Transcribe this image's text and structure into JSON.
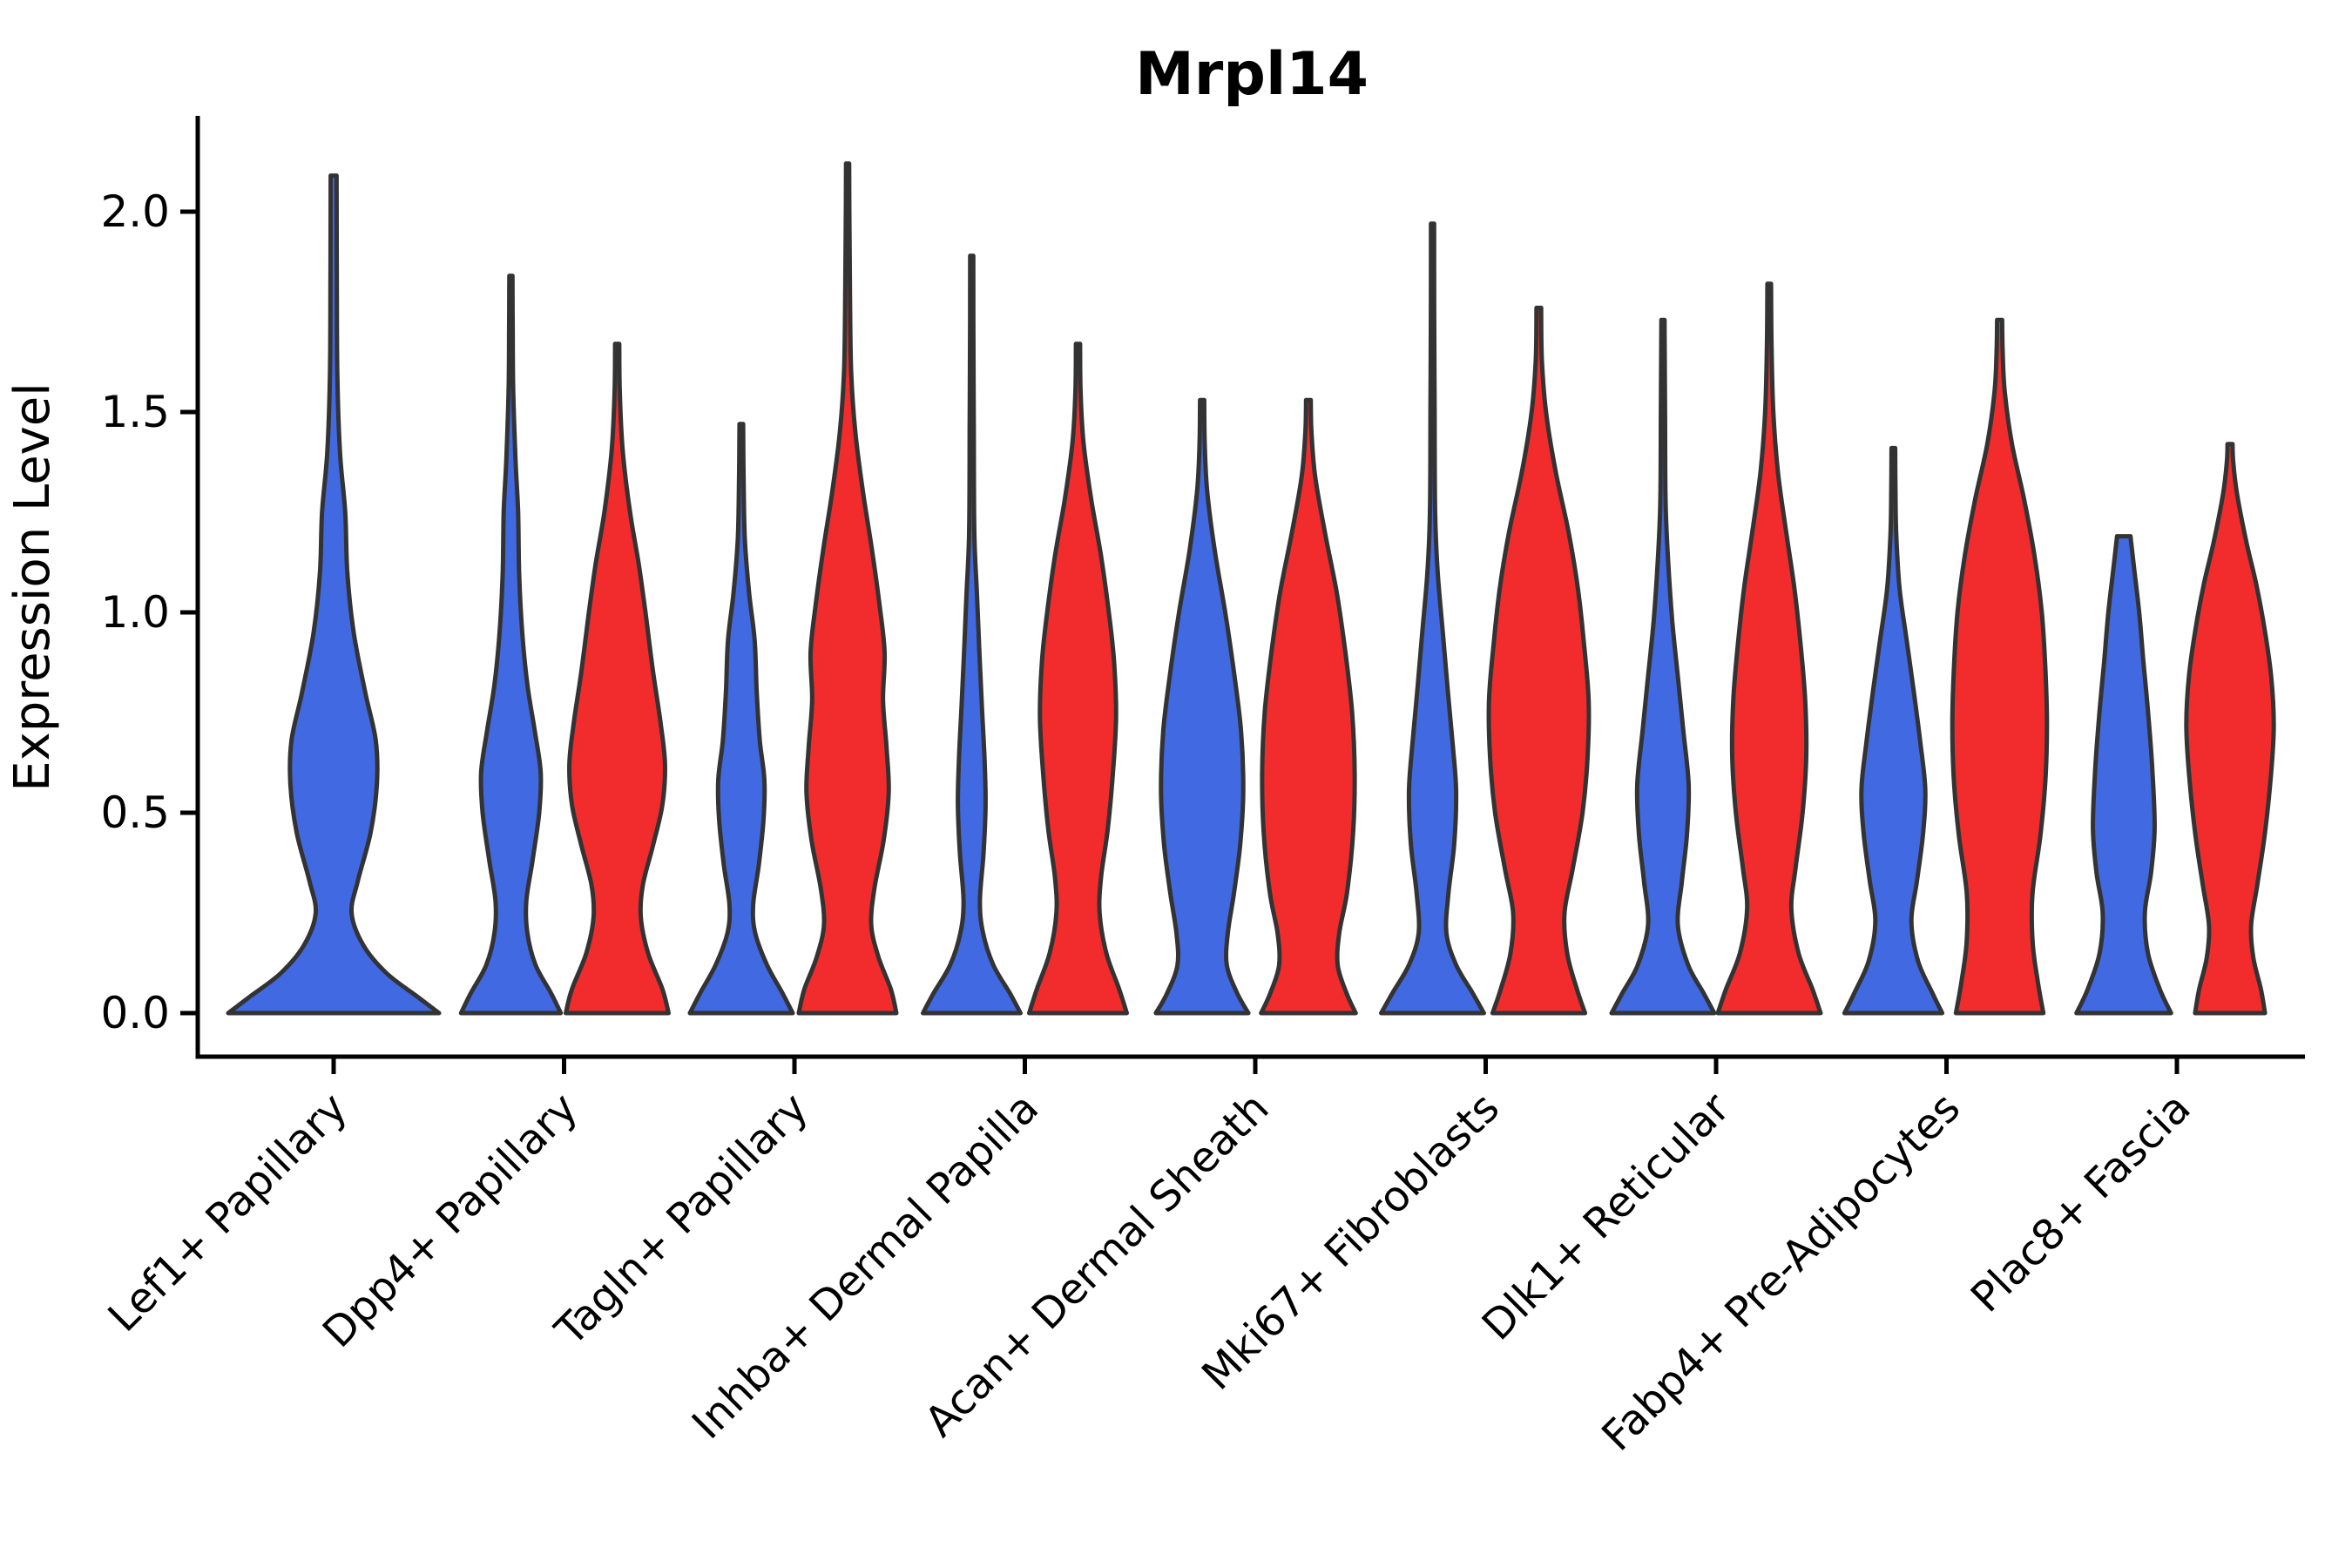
{
  "title": "Mrpl14",
  "y_axis": {
    "label": "Expression Level",
    "tick_labels": [
      "0.0",
      "0.5",
      "1.0",
      "1.5",
      "2.0"
    ]
  },
  "chart_data": {
    "type": "violin",
    "title": "Mrpl14",
    "xlabel": "",
    "ylabel": "Expression Level",
    "ylim": [
      -0.11,
      2.24
    ],
    "yticks": [
      0.0,
      0.5,
      1.0,
      1.5,
      2.0
    ],
    "grid": false,
    "legend": "none",
    "categories": [
      "Lef1+ Papillary",
      "Dpp4+ Papillary",
      "Tagln+ Papillary",
      "Inhba+ Dermal Papilla",
      "Acan+ Dermal Sheath",
      "Mki67+ Fibroblasts",
      "Dlk1+ Reticular",
      "Fabp4+ Pre-Adipocytes",
      "Plac8+ Fascia"
    ],
    "series": [
      {
        "name": "split-left",
        "color": "#4169E1"
      },
      {
        "name": "split-right",
        "color": "#F22C2C"
      }
    ],
    "outline_color": "#333333",
    "violins": [
      {
        "category": 0,
        "series": 0,
        "single": true,
        "max_expression": 2.09,
        "profile": [
          [
            0,
            1.0
          ],
          [
            0.04,
            0.8
          ],
          [
            0.1,
            0.5
          ],
          [
            0.17,
            0.28
          ],
          [
            0.25,
            0.17
          ],
          [
            0.33,
            0.23
          ],
          [
            0.45,
            0.35
          ],
          [
            0.57,
            0.41
          ],
          [
            0.68,
            0.4
          ],
          [
            0.8,
            0.3
          ],
          [
            0.95,
            0.19
          ],
          [
            1.1,
            0.13
          ],
          [
            1.25,
            0.11
          ],
          [
            1.4,
            0.06
          ],
          [
            1.6,
            0.035
          ],
          [
            1.85,
            0.03
          ],
          [
            2.09,
            0.028
          ]
        ]
      },
      {
        "category": 1,
        "series": 0,
        "single": false,
        "max_expression": 1.84,
        "profile": [
          [
            0,
            0.97
          ],
          [
            0.05,
            0.78
          ],
          [
            0.12,
            0.48
          ],
          [
            0.2,
            0.32
          ],
          [
            0.28,
            0.3
          ],
          [
            0.38,
            0.42
          ],
          [
            0.5,
            0.55
          ],
          [
            0.6,
            0.58
          ],
          [
            0.7,
            0.47
          ],
          [
            0.82,
            0.32
          ],
          [
            0.95,
            0.22
          ],
          [
            1.1,
            0.16
          ],
          [
            1.25,
            0.14
          ],
          [
            1.38,
            0.09
          ],
          [
            1.55,
            0.045
          ],
          [
            1.7,
            0.035
          ],
          [
            1.84,
            0.03
          ]
        ]
      },
      {
        "category": 1,
        "series": 1,
        "single": false,
        "max_expression": 1.67,
        "profile": [
          [
            0,
            1.0
          ],
          [
            0.06,
            0.88
          ],
          [
            0.15,
            0.6
          ],
          [
            0.24,
            0.46
          ],
          [
            0.32,
            0.5
          ],
          [
            0.42,
            0.7
          ],
          [
            0.52,
            0.88
          ],
          [
            0.62,
            0.93
          ],
          [
            0.72,
            0.85
          ],
          [
            0.85,
            0.7
          ],
          [
            1.0,
            0.55
          ],
          [
            1.12,
            0.42
          ],
          [
            1.25,
            0.25
          ],
          [
            1.4,
            0.11
          ],
          [
            1.55,
            0.05
          ],
          [
            1.67,
            0.04
          ]
        ]
      },
      {
        "category": 2,
        "series": 0,
        "single": false,
        "max_expression": 1.47,
        "profile": [
          [
            0,
            1.0
          ],
          [
            0.05,
            0.8
          ],
          [
            0.12,
            0.5
          ],
          [
            0.2,
            0.27
          ],
          [
            0.27,
            0.23
          ],
          [
            0.37,
            0.34
          ],
          [
            0.48,
            0.43
          ],
          [
            0.58,
            0.45
          ],
          [
            0.68,
            0.36
          ],
          [
            0.8,
            0.3
          ],
          [
            0.93,
            0.26
          ],
          [
            1.05,
            0.15
          ],
          [
            1.18,
            0.07
          ],
          [
            1.32,
            0.045
          ],
          [
            1.47,
            0.035
          ]
        ]
      },
      {
        "category": 2,
        "series": 1,
        "single": false,
        "max_expression": 2.12,
        "profile": [
          [
            0,
            0.95
          ],
          [
            0.06,
            0.84
          ],
          [
            0.14,
            0.6
          ],
          [
            0.22,
            0.46
          ],
          [
            0.31,
            0.52
          ],
          [
            0.43,
            0.7
          ],
          [
            0.55,
            0.8
          ],
          [
            0.66,
            0.76
          ],
          [
            0.78,
            0.69
          ],
          [
            0.9,
            0.72
          ],
          [
            1.02,
            0.62
          ],
          [
            1.16,
            0.47
          ],
          [
            1.3,
            0.3
          ],
          [
            1.45,
            0.15
          ],
          [
            1.6,
            0.07
          ],
          [
            1.8,
            0.045
          ],
          [
            1.97,
            0.035
          ],
          [
            2.12,
            0.03
          ]
        ]
      },
      {
        "category": 3,
        "series": 0,
        "single": false,
        "max_expression": 1.89,
        "profile": [
          [
            0,
            0.95
          ],
          [
            0.05,
            0.74
          ],
          [
            0.12,
            0.42
          ],
          [
            0.2,
            0.22
          ],
          [
            0.28,
            0.16
          ],
          [
            0.4,
            0.23
          ],
          [
            0.52,
            0.27
          ],
          [
            0.63,
            0.25
          ],
          [
            0.76,
            0.2
          ],
          [
            0.9,
            0.15
          ],
          [
            1.05,
            0.1
          ],
          [
            1.2,
            0.05
          ],
          [
            1.45,
            0.04
          ],
          [
            1.7,
            0.033
          ],
          [
            1.89,
            0.03
          ]
        ]
      },
      {
        "category": 3,
        "series": 1,
        "single": false,
        "max_expression": 1.67,
        "profile": [
          [
            0,
            0.95
          ],
          [
            0.06,
            0.8
          ],
          [
            0.15,
            0.55
          ],
          [
            0.25,
            0.42
          ],
          [
            0.34,
            0.45
          ],
          [
            0.46,
            0.58
          ],
          [
            0.6,
            0.68
          ],
          [
            0.74,
            0.74
          ],
          [
            0.88,
            0.7
          ],
          [
            1.0,
            0.6
          ],
          [
            1.14,
            0.45
          ],
          [
            1.28,
            0.26
          ],
          [
            1.42,
            0.11
          ],
          [
            1.55,
            0.05
          ],
          [
            1.67,
            0.04
          ]
        ]
      },
      {
        "category": 4,
        "series": 0,
        "single": false,
        "max_expression": 1.53,
        "profile": [
          [
            0,
            0.9
          ],
          [
            0.05,
            0.68
          ],
          [
            0.12,
            0.48
          ],
          [
            0.2,
            0.5
          ],
          [
            0.3,
            0.62
          ],
          [
            0.42,
            0.74
          ],
          [
            0.55,
            0.8
          ],
          [
            0.7,
            0.76
          ],
          [
            0.85,
            0.62
          ],
          [
            1.0,
            0.45
          ],
          [
            1.15,
            0.25
          ],
          [
            1.3,
            0.1
          ],
          [
            1.42,
            0.05
          ],
          [
            1.53,
            0.04
          ]
        ]
      },
      {
        "category": 4,
        "series": 1,
        "single": false,
        "max_expression": 1.53,
        "profile": [
          [
            0,
            0.92
          ],
          [
            0.05,
            0.74
          ],
          [
            0.12,
            0.57
          ],
          [
            0.2,
            0.6
          ],
          [
            0.3,
            0.75
          ],
          [
            0.45,
            0.87
          ],
          [
            0.6,
            0.9
          ],
          [
            0.75,
            0.85
          ],
          [
            0.9,
            0.72
          ],
          [
            1.05,
            0.55
          ],
          [
            1.2,
            0.32
          ],
          [
            1.34,
            0.13
          ],
          [
            1.45,
            0.06
          ],
          [
            1.53,
            0.045
          ]
        ]
      },
      {
        "category": 5,
        "series": 0,
        "single": false,
        "max_expression": 1.97,
        "profile": [
          [
            0,
            1.0
          ],
          [
            0.05,
            0.78
          ],
          [
            0.12,
            0.46
          ],
          [
            0.2,
            0.27
          ],
          [
            0.3,
            0.31
          ],
          [
            0.42,
            0.42
          ],
          [
            0.55,
            0.46
          ],
          [
            0.66,
            0.4
          ],
          [
            0.8,
            0.3
          ],
          [
            0.95,
            0.2
          ],
          [
            1.1,
            0.1
          ],
          [
            1.25,
            0.05
          ],
          [
            1.5,
            0.04
          ],
          [
            1.75,
            0.033
          ],
          [
            1.97,
            0.03
          ]
        ]
      },
      {
        "category": 5,
        "series": 1,
        "single": false,
        "max_expression": 1.76,
        "profile": [
          [
            0,
            0.9
          ],
          [
            0.06,
            0.74
          ],
          [
            0.15,
            0.55
          ],
          [
            0.25,
            0.5
          ],
          [
            0.36,
            0.66
          ],
          [
            0.5,
            0.85
          ],
          [
            0.64,
            0.95
          ],
          [
            0.78,
            0.97
          ],
          [
            0.92,
            0.88
          ],
          [
            1.06,
            0.76
          ],
          [
            1.2,
            0.58
          ],
          [
            1.35,
            0.33
          ],
          [
            1.5,
            0.14
          ],
          [
            1.63,
            0.06
          ],
          [
            1.76,
            0.045
          ]
        ]
      },
      {
        "category": 6,
        "series": 0,
        "single": false,
        "max_expression": 1.73,
        "profile": [
          [
            0,
            1.0
          ],
          [
            0.05,
            0.79
          ],
          [
            0.12,
            0.49
          ],
          [
            0.22,
            0.29
          ],
          [
            0.33,
            0.37
          ],
          [
            0.45,
            0.47
          ],
          [
            0.57,
            0.5
          ],
          [
            0.7,
            0.4
          ],
          [
            0.84,
            0.29
          ],
          [
            0.98,
            0.18
          ],
          [
            1.13,
            0.1
          ],
          [
            1.28,
            0.05
          ],
          [
            1.5,
            0.04
          ],
          [
            1.73,
            0.03
          ]
        ]
      },
      {
        "category": 6,
        "series": 1,
        "single": false,
        "max_expression": 1.82,
        "profile": [
          [
            0,
            1.0
          ],
          [
            0.06,
            0.84
          ],
          [
            0.15,
            0.57
          ],
          [
            0.26,
            0.43
          ],
          [
            0.36,
            0.51
          ],
          [
            0.5,
            0.65
          ],
          [
            0.64,
            0.72
          ],
          [
            0.78,
            0.7
          ],
          [
            0.92,
            0.61
          ],
          [
            1.06,
            0.49
          ],
          [
            1.2,
            0.33
          ],
          [
            1.35,
            0.17
          ],
          [
            1.5,
            0.08
          ],
          [
            1.66,
            0.045
          ],
          [
            1.82,
            0.035
          ]
        ]
      },
      {
        "category": 7,
        "series": 0,
        "single": false,
        "max_expression": 1.41,
        "profile": [
          [
            0,
            0.95
          ],
          [
            0.05,
            0.76
          ],
          [
            0.13,
            0.48
          ],
          [
            0.23,
            0.35
          ],
          [
            0.33,
            0.46
          ],
          [
            0.45,
            0.58
          ],
          [
            0.56,
            0.62
          ],
          [
            0.68,
            0.52
          ],
          [
            0.8,
            0.4
          ],
          [
            0.93,
            0.26
          ],
          [
            1.06,
            0.12
          ],
          [
            1.2,
            0.055
          ],
          [
            1.31,
            0.04
          ],
          [
            1.41,
            0.035
          ]
        ]
      },
      {
        "category": 7,
        "series": 1,
        "single": false,
        "max_expression": 1.73,
        "profile": [
          [
            0,
            0.85
          ],
          [
            0.08,
            0.74
          ],
          [
            0.18,
            0.64
          ],
          [
            0.3,
            0.64
          ],
          [
            0.44,
            0.79
          ],
          [
            0.58,
            0.89
          ],
          [
            0.72,
            0.92
          ],
          [
            0.86,
            0.89
          ],
          [
            1.0,
            0.82
          ],
          [
            1.14,
            0.68
          ],
          [
            1.28,
            0.48
          ],
          [
            1.42,
            0.24
          ],
          [
            1.55,
            0.1
          ],
          [
            1.65,
            0.06
          ],
          [
            1.73,
            0.05
          ]
        ]
      },
      {
        "category": 8,
        "series": 0,
        "single": false,
        "max_expression": 1.19,
        "blunt_top": true,
        "profile": [
          [
            0,
            0.92
          ],
          [
            0.06,
            0.7
          ],
          [
            0.15,
            0.47
          ],
          [
            0.25,
            0.41
          ],
          [
            0.35,
            0.53
          ],
          [
            0.46,
            0.6
          ],
          [
            0.6,
            0.56
          ],
          [
            0.74,
            0.48
          ],
          [
            0.88,
            0.38
          ],
          [
            1.0,
            0.3
          ],
          [
            1.1,
            0.21
          ],
          [
            1.19,
            0.13
          ]
        ]
      },
      {
        "category": 8,
        "series": 1,
        "single": false,
        "max_expression": 1.42,
        "profile": [
          [
            0,
            0.68
          ],
          [
            0.06,
            0.6
          ],
          [
            0.14,
            0.45
          ],
          [
            0.22,
            0.41
          ],
          [
            0.32,
            0.53
          ],
          [
            0.45,
            0.68
          ],
          [
            0.6,
            0.8
          ],
          [
            0.72,
            0.85
          ],
          [
            0.84,
            0.8
          ],
          [
            0.96,
            0.67
          ],
          [
            1.07,
            0.51
          ],
          [
            1.18,
            0.31
          ],
          [
            1.3,
            0.13
          ],
          [
            1.38,
            0.06
          ],
          [
            1.42,
            0.05
          ]
        ]
      }
    ]
  }
}
